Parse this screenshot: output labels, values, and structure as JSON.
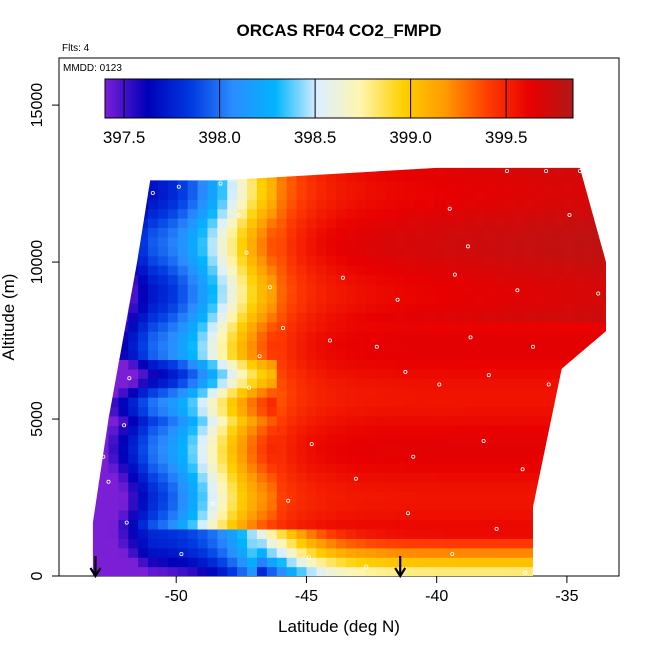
{
  "chart_data": {
    "type": "heatmap",
    "title": "ORCAS RF04 CO2_FMPD",
    "note_flights": "Flts: 4",
    "note_date": "MMDD: 0123",
    "xlabel": "Latitude (deg N)",
    "ylabel": "Altitude (m)",
    "xlim": [
      -54.5,
      -33
    ],
    "ylim": [
      0,
      16500
    ],
    "x_ticks": [
      -50,
      -45,
      -40,
      -35
    ],
    "x_tick_labels": [
      "-50",
      "-45",
      "-40",
      "-35"
    ],
    "y_ticks": [
      0,
      5000,
      10000,
      15000
    ],
    "y_tick_labels": [
      "0",
      "5000",
      "10000",
      "15000"
    ],
    "colorbar": {
      "range": [
        397.4,
        399.85
      ],
      "ticks": [
        397.5,
        398.0,
        398.5,
        399.0,
        399.5
      ],
      "tick_labels": [
        "397.5",
        "398.0",
        "398.5",
        "399.0",
        "399.5"
      ],
      "colors": [
        "#7a1fd6",
        "#0000b8",
        "#0038e0",
        "#2b8cff",
        "#00b4ff",
        "#dcefff",
        "#fff6b0",
        "#ffd000",
        "#ff9a00",
        "#ff3c00",
        "#e80000",
        "#b01818"
      ]
    },
    "arrows_latitude": [
      -53.1,
      -41.4
    ],
    "domain_outline": [
      [
        -53.2,
        0
      ],
      [
        -53.2,
        1700
      ],
      [
        -52.6,
        5000
      ],
      [
        -51.5,
        10000
      ],
      [
        -51.0,
        12600
      ],
      [
        -48.3,
        12600
      ],
      [
        -40.0,
        13000
      ],
      [
        -34.5,
        13000
      ],
      [
        -33.5,
        10000
      ],
      [
        -33.5,
        7800
      ],
      [
        -35.2,
        6600
      ],
      [
        -36.3,
        2200
      ],
      [
        -36.3,
        0
      ]
    ],
    "sample_points": [
      [
        -51.9,
        1700
      ],
      [
        -52.6,
        3000
      ],
      [
        -52.8,
        3800
      ],
      [
        -52.0,
        4800
      ],
      [
        -51.8,
        6300
      ],
      [
        -50.9,
        12200
      ],
      [
        -49.9,
        12400
      ],
      [
        -48.3,
        12500
      ],
      [
        -47.6,
        11500
      ],
      [
        -47.3,
        10300
      ],
      [
        -45.9,
        7900
      ],
      [
        -46.8,
        7000
      ],
      [
        -47.2,
        6000
      ],
      [
        -44.1,
        7500
      ],
      [
        -42.3,
        7300
      ],
      [
        -41.2,
        6500
      ],
      [
        -39.9,
        6100
      ],
      [
        -38.7,
        7600
      ],
      [
        -38.0,
        6400
      ],
      [
        -36.3,
        7300
      ],
      [
        -35.7,
        6100
      ],
      [
        -34.4,
        5700
      ],
      [
        -39.5,
        11700
      ],
      [
        -38.8,
        10500
      ],
      [
        -39.3,
        9600
      ],
      [
        -36.9,
        9100
      ],
      [
        -34.9,
        11500
      ],
      [
        -33.8,
        9000
      ],
      [
        -44.8,
        4200
      ],
      [
        -43.1,
        3100
      ],
      [
        -40.9,
        3800
      ],
      [
        -38.2,
        4300
      ],
      [
        -36.7,
        3400
      ],
      [
        -45.7,
        2400
      ],
      [
        -41.1,
        2000
      ],
      [
        -37.7,
        1500
      ],
      [
        -44.9,
        600
      ],
      [
        -42.7,
        300
      ],
      [
        -39.4,
        700
      ],
      [
        -36.6,
        100
      ],
      [
        -49.8,
        700
      ],
      [
        -48.6,
        2300
      ],
      [
        -46.4,
        9200
      ],
      [
        -43.6,
        9500
      ],
      [
        -41.5,
        8800
      ],
      [
        -37.3,
        12900
      ],
      [
        -35.8,
        12900
      ],
      [
        -34.5,
        12900
      ]
    ]
  }
}
